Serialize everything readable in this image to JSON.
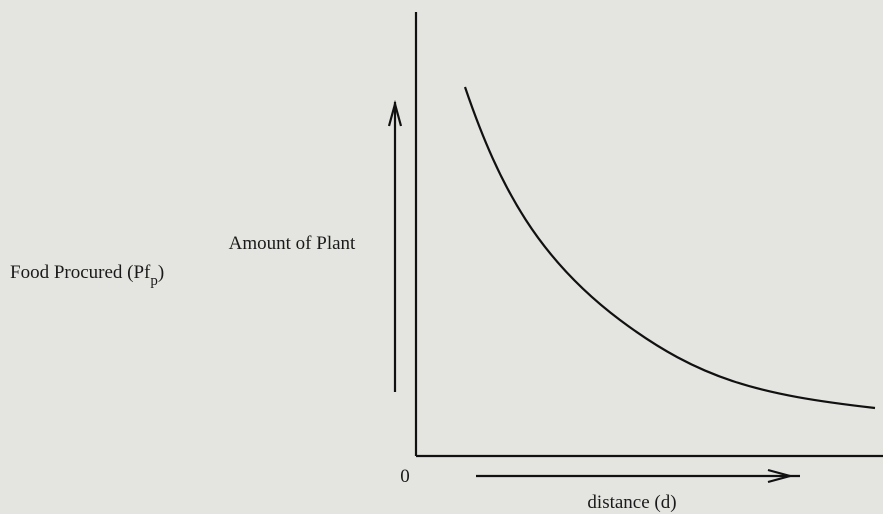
{
  "y_label": {
    "line1": "Amount of Plant",
    "line2": "Food Procured (Pf",
    "subscript": "p",
    "close": ")"
  },
  "origin": "0",
  "x_label": "distance (d)"
}
